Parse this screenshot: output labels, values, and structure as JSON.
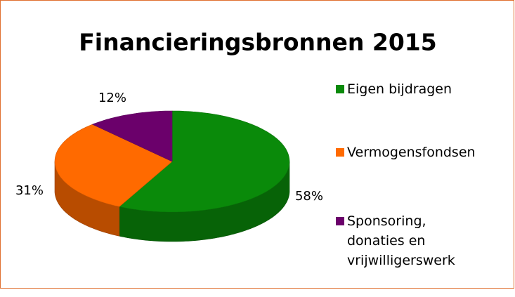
{
  "chart_data": {
    "type": "pie",
    "title": "Financieringsbronnen 2015",
    "categories": [
      "Eigen bijdragen",
      "Vermogensfondsen",
      "Sponsoring, donaties en vrijwilligerswerk"
    ],
    "values": [
      58,
      31,
      12
    ],
    "value_labels": [
      "58%",
      "31%",
      "12%"
    ],
    "colors": [
      "#0a8a0a",
      "#ff6a00",
      "#6b006b"
    ],
    "legend": "right"
  }
}
